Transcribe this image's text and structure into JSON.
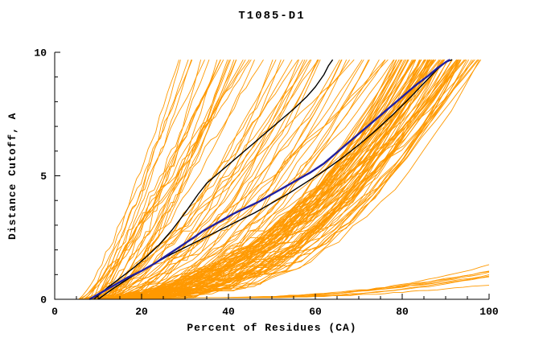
{
  "page": {
    "background": "#ffffff"
  },
  "chart_data": {
    "type": "line",
    "title": "T1085-D1",
    "xlabel": "Percent of Residues (CA)",
    "ylabel": "Distance Cutoff, A",
    "xlim": [
      0,
      100
    ],
    "ylim": [
      0,
      10
    ],
    "x_ticks": [
      0,
      20,
      40,
      60,
      80,
      100
    ],
    "y_ticks": [
      0,
      5,
      10
    ],
    "x_minor_step": 5,
    "y_minor_step": 1,
    "grid": false,
    "legend": "none",
    "axis_color": "#000000",
    "colors": {
      "ensemble": "#FF9900",
      "highlight": "#2020A0",
      "reference": "#000000"
    },
    "series": [
      {
        "name": "reference-curve-black-steep",
        "color": "#000000",
        "width": 1.4,
        "points": [
          [
            9,
            0
          ],
          [
            12,
            0.45
          ],
          [
            15,
            0.85
          ],
          [
            18,
            1.25
          ],
          [
            21,
            1.7
          ],
          [
            24,
            2.2
          ],
          [
            27,
            2.8
          ],
          [
            30,
            3.5
          ],
          [
            33,
            4.25
          ],
          [
            35,
            4.7
          ],
          [
            37,
            5.0
          ],
          [
            40,
            5.45
          ],
          [
            43,
            5.9
          ],
          [
            46,
            6.35
          ],
          [
            49,
            6.8
          ],
          [
            52,
            7.25
          ],
          [
            55,
            7.7
          ],
          [
            58,
            8.2
          ],
          [
            60,
            8.6
          ],
          [
            62,
            9.1
          ],
          [
            63,
            9.45
          ],
          [
            64,
            9.7
          ]
        ]
      },
      {
        "name": "reference-curve-black-main",
        "color": "#000000",
        "width": 1.4,
        "points": [
          [
            10,
            0
          ],
          [
            14,
            0.5
          ],
          [
            18,
            0.95
          ],
          [
            22,
            1.35
          ],
          [
            26,
            1.75
          ],
          [
            30,
            2.1
          ],
          [
            34,
            2.45
          ],
          [
            38,
            2.8
          ],
          [
            42,
            3.15
          ],
          [
            46,
            3.5
          ],
          [
            50,
            3.9
          ],
          [
            54,
            4.3
          ],
          [
            58,
            4.75
          ],
          [
            62,
            5.2
          ],
          [
            66,
            5.7
          ],
          [
            70,
            6.25
          ],
          [
            74,
            6.85
          ],
          [
            78,
            7.5
          ],
          [
            82,
            8.2
          ],
          [
            85,
            8.75
          ],
          [
            88,
            9.3
          ],
          [
            90,
            9.6
          ],
          [
            91.5,
            9.7
          ]
        ]
      },
      {
        "name": "model-curve-blue-highlight",
        "color": "#2020A0",
        "width": 2.4,
        "points": [
          [
            8,
            0
          ],
          [
            11,
            0.3
          ],
          [
            14,
            0.6
          ],
          [
            17,
            0.9
          ],
          [
            20,
            1.15
          ],
          [
            23,
            1.45
          ],
          [
            26,
            1.8
          ],
          [
            29,
            2.15
          ],
          [
            32,
            2.5
          ],
          [
            34,
            2.75
          ],
          [
            36,
            2.95
          ],
          [
            38,
            3.15
          ],
          [
            41,
            3.45
          ],
          [
            44,
            3.7
          ],
          [
            47,
            3.95
          ],
          [
            50,
            4.25
          ],
          [
            53,
            4.55
          ],
          [
            56,
            4.85
          ],
          [
            59,
            5.15
          ],
          [
            62,
            5.5
          ],
          [
            65,
            5.95
          ],
          [
            68,
            6.4
          ],
          [
            71,
            6.85
          ],
          [
            74,
            7.3
          ],
          [
            77,
            7.75
          ],
          [
            80,
            8.2
          ],
          [
            83,
            8.65
          ],
          [
            86,
            9.05
          ],
          [
            88,
            9.35
          ],
          [
            90,
            9.6
          ],
          [
            91,
            9.7
          ]
        ]
      }
    ],
    "ensemble": {
      "name": "predictor-model-curves-orange",
      "color": "#FF9900",
      "count": 140,
      "x_start_range": [
        5,
        14
      ],
      "x_top_range": [
        28,
        99
      ],
      "y_top": 9.7,
      "seed": 11,
      "flat_outliers": {
        "count": 8,
        "knee_x_range": [
          30,
          45
        ],
        "y_end_range": [
          0.5,
          1.5
        ]
      }
    }
  }
}
